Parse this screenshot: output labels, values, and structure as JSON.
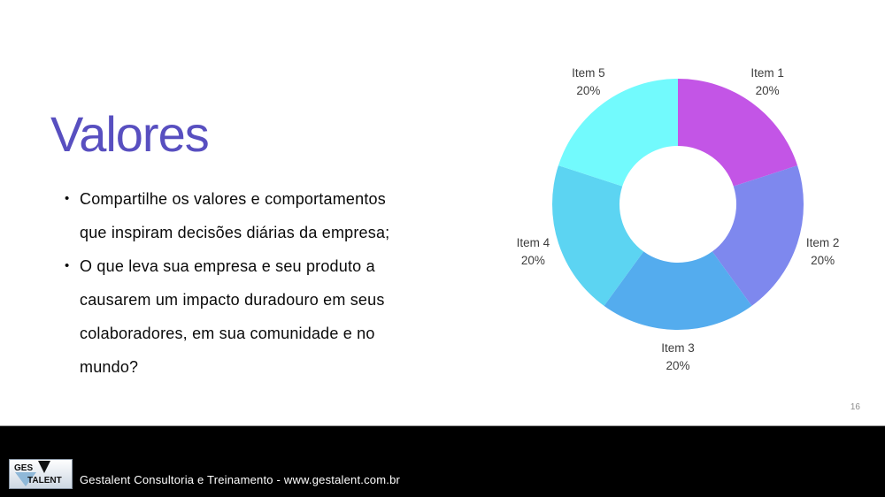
{
  "slide": {
    "title": "Valores",
    "bullets": [
      "Compartilhe os valores e comportamentos que inspiram decisões diárias da empresa;",
      "O que leva sua empresa e seu produto a causarem um impacto duradouro em seus colaboradores, em sua comunidade e no mundo?"
    ],
    "page_number": "16",
    "title_color": "#584FC0"
  },
  "chart_data": {
    "type": "pie",
    "subtype": "donut",
    "categories": [
      "Item 1",
      "Item 2",
      "Item 3",
      "Item 4",
      "Item 5"
    ],
    "values": [
      20,
      20,
      20,
      20,
      20
    ],
    "labels": [
      "20%",
      "20%",
      "20%",
      "20%",
      "20%"
    ],
    "colors": [
      "#C355E6",
      "#7E88EE",
      "#54ACEE",
      "#5CD4F2",
      "#72FAFD"
    ],
    "start_angle_deg": 0,
    "direction": "clockwise",
    "inner_radius_ratio": 0.465,
    "label_color": "#3d3d3d",
    "legend": "none",
    "title": ""
  },
  "footer": {
    "logo_line1": "GES",
    "logo_line2": "TALENT",
    "text": "Gestalent Consultoria e Treinamento - www.gestalent.com.br",
    "background": "#000000"
  }
}
